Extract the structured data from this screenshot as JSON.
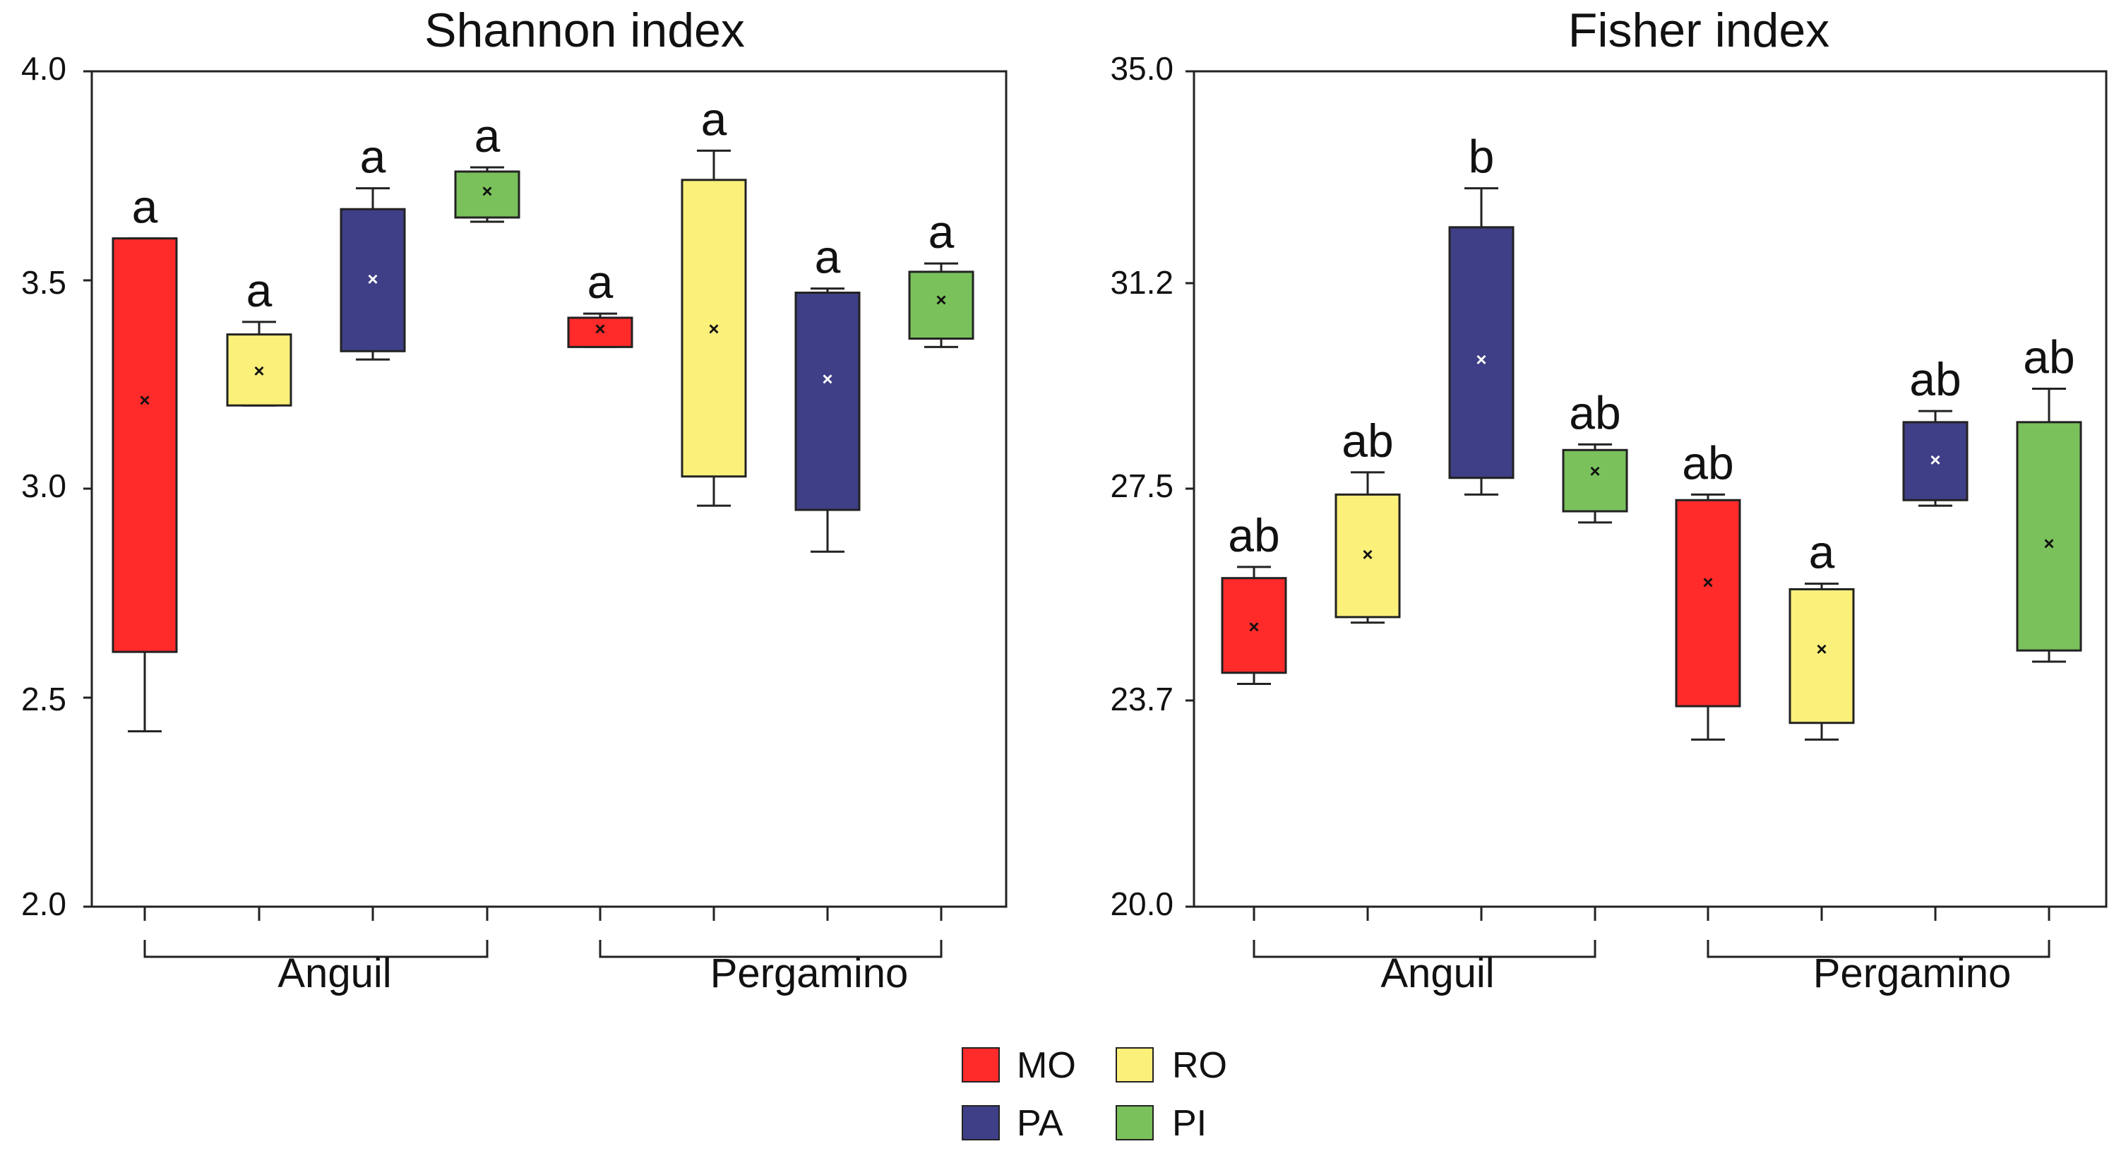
{
  "colors": {
    "MO": "#ff2a2a",
    "RO": "#faf07a",
    "PA": "#3f3f87",
    "PI": "#7ac15c"
  },
  "legend": {
    "items": [
      {
        "key": "MO",
        "label": "MO"
      },
      {
        "key": "RO",
        "label": "RO"
      },
      {
        "key": "PA",
        "label": "PA"
      },
      {
        "key": "PI",
        "label": "PI"
      }
    ]
  },
  "chart_data": [
    {
      "type": "box",
      "title": "Shannon index",
      "ylim": [
        2.0,
        4.0
      ],
      "yticks": [
        "2.0",
        "2.5",
        "3.0",
        "3.5",
        "4.0"
      ],
      "groups": [
        "Anguil",
        "Pergamino"
      ],
      "categories": [
        "MO",
        "RO",
        "PA",
        "PI"
      ],
      "boxes": [
        {
          "group": "Anguil",
          "treatment": "MO",
          "whisker_low": 2.42,
          "q1": 2.61,
          "mean": 3.21,
          "q3": 3.6,
          "whisker_high": 3.6,
          "letter": "a"
        },
        {
          "group": "Anguil",
          "treatment": "RO",
          "whisker_low": 3.2,
          "q1": 3.2,
          "mean": 3.28,
          "q3": 3.37,
          "whisker_high": 3.4,
          "letter": "a"
        },
        {
          "group": "Anguil",
          "treatment": "PA",
          "whisker_low": 3.31,
          "q1": 3.33,
          "mean": 3.5,
          "q3": 3.67,
          "whisker_high": 3.72,
          "letter": "a"
        },
        {
          "group": "Anguil",
          "treatment": "PI",
          "whisker_low": 3.64,
          "q1": 3.65,
          "mean": 3.71,
          "q3": 3.76,
          "whisker_high": 3.77,
          "letter": "a"
        },
        {
          "group": "Pergamino",
          "treatment": "MO",
          "whisker_low": 3.34,
          "q1": 3.34,
          "mean": 3.38,
          "q3": 3.41,
          "whisker_high": 3.42,
          "letter": "a"
        },
        {
          "group": "Pergamino",
          "treatment": "RO",
          "whisker_low": 2.96,
          "q1": 3.03,
          "mean": 3.38,
          "q3": 3.74,
          "whisker_high": 3.81,
          "letter": "a"
        },
        {
          "group": "Pergamino",
          "treatment": "PA",
          "whisker_low": 2.85,
          "q1": 2.95,
          "mean": 3.26,
          "q3": 3.47,
          "whisker_high": 3.48,
          "letter": "a"
        },
        {
          "group": "Pergamino",
          "treatment": "PI",
          "whisker_low": 3.34,
          "q1": 3.36,
          "mean": 3.45,
          "q3": 3.52,
          "whisker_high": 3.54,
          "letter": "a"
        }
      ]
    },
    {
      "type": "box",
      "title": "Fisher index",
      "ylim": [
        20.0,
        35.0
      ],
      "yticks": [
        "20.0",
        "23.7",
        "27.5",
        "31.2",
        "35.0"
      ],
      "groups": [
        "Anguil",
        "Pergamino"
      ],
      "categories": [
        "MO",
        "RO",
        "PA",
        "PI"
      ],
      "boxes": [
        {
          "group": "Anguil",
          "treatment": "MO",
          "whisker_low": 24.0,
          "q1": 24.2,
          "mean": 25.0,
          "q3": 25.9,
          "whisker_high": 26.1,
          "letter": "ab"
        },
        {
          "group": "Anguil",
          "treatment": "RO",
          "whisker_low": 25.1,
          "q1": 25.2,
          "mean": 26.3,
          "q3": 27.4,
          "whisker_high": 27.8,
          "letter": "ab"
        },
        {
          "group": "Anguil",
          "treatment": "PA",
          "whisker_low": 27.4,
          "q1": 27.7,
          "mean": 29.8,
          "q3": 32.2,
          "whisker_high": 32.9,
          "letter": "b"
        },
        {
          "group": "Anguil",
          "treatment": "PI",
          "whisker_low": 26.9,
          "q1": 27.1,
          "mean": 27.8,
          "q3": 28.2,
          "whisker_high": 28.3,
          "letter": "ab"
        },
        {
          "group": "Pergamino",
          "treatment": "MO",
          "whisker_low": 23.0,
          "q1": 23.6,
          "mean": 25.8,
          "q3": 27.3,
          "whisker_high": 27.4,
          "letter": "ab"
        },
        {
          "group": "Pergamino",
          "treatment": "RO",
          "whisker_low": 23.0,
          "q1": 23.3,
          "mean": 24.6,
          "q3": 25.7,
          "whisker_high": 25.8,
          "letter": "a"
        },
        {
          "group": "Pergamino",
          "treatment": "PA",
          "whisker_low": 27.2,
          "q1": 27.3,
          "mean": 28.0,
          "q3": 28.7,
          "whisker_high": 28.9,
          "letter": "ab"
        },
        {
          "group": "Pergamino",
          "treatment": "PI",
          "whisker_low": 24.4,
          "q1": 24.6,
          "mean": 26.5,
          "q3": 28.7,
          "whisker_high": 29.3,
          "letter": "ab"
        }
      ]
    }
  ]
}
